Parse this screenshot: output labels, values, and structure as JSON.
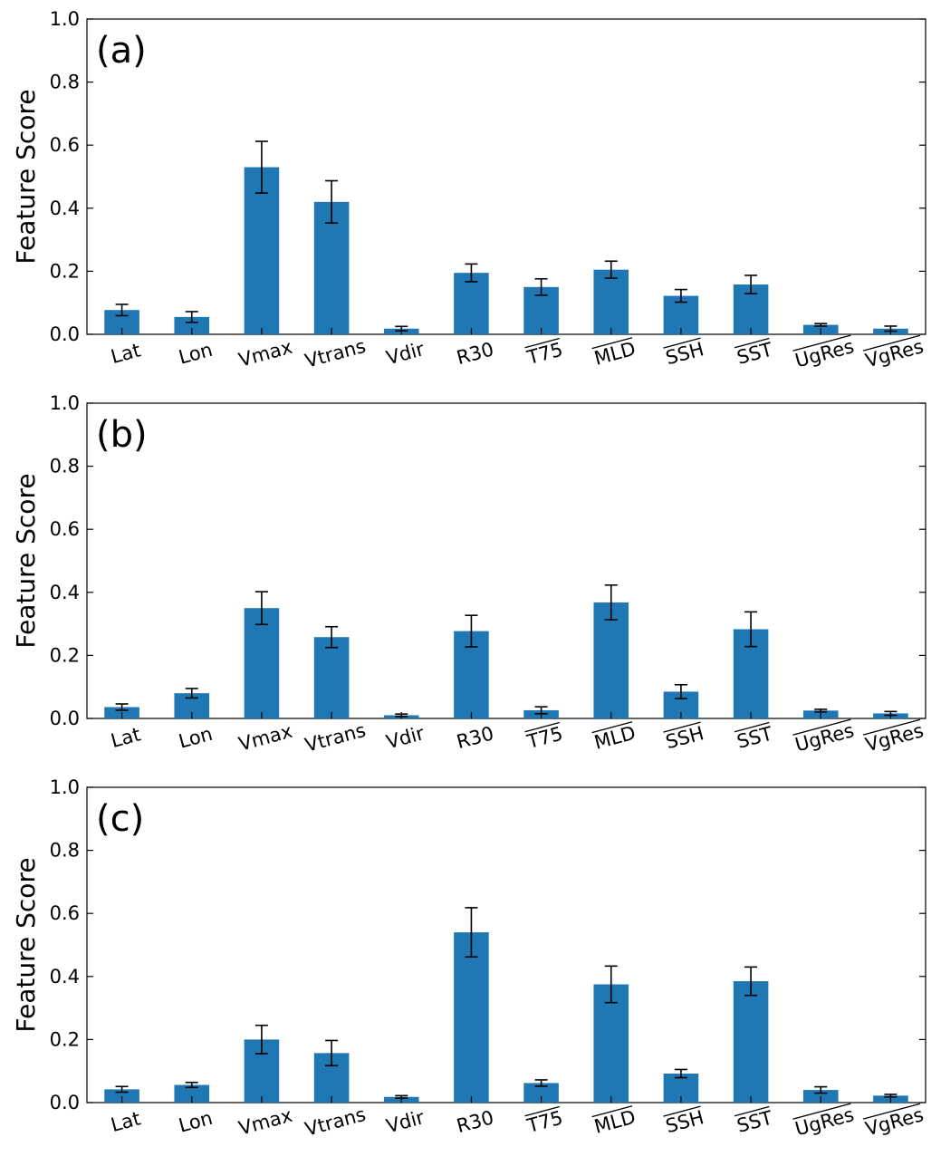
{
  "chart_data": [
    {
      "type": "bar",
      "panel_label": "(a)",
      "ylabel": "Feature Score",
      "ylim": [
        0,
        1.0
      ],
      "yticks": [
        "0.0",
        "0.2",
        "0.4",
        "0.6",
        "0.8",
        "1.0"
      ],
      "categories": [
        "Lat",
        "Lon",
        "Vmax",
        "Vtrans",
        "Vdir",
        "R30",
        "T75",
        "MLD",
        "SSH",
        "SST",
        "UgRes",
        "VgRes"
      ],
      "overlined": [
        false,
        false,
        false,
        false,
        false,
        false,
        true,
        true,
        true,
        true,
        true,
        true
      ],
      "values": [
        0.077,
        0.055,
        0.53,
        0.42,
        0.018,
        0.195,
        0.15,
        0.205,
        0.122,
        0.158,
        0.03,
        0.018
      ],
      "errors": [
        0.018,
        0.017,
        0.082,
        0.067,
        0.007,
        0.028,
        0.026,
        0.027,
        0.02,
        0.029,
        0.004,
        0.008
      ],
      "bar_color": "#1f77b4"
    },
    {
      "type": "bar",
      "panel_label": "(b)",
      "ylabel": "Feature Score",
      "ylim": [
        0,
        1.0
      ],
      "yticks": [
        "0.0",
        "0.2",
        "0.4",
        "0.6",
        "0.8",
        "1.0"
      ],
      "categories": [
        "Lat",
        "Lon",
        "Vmax",
        "Vtrans",
        "Vdir",
        "R30",
        "T75",
        "MLD",
        "SSH",
        "SST",
        "UgRes",
        "VgRes"
      ],
      "overlined": [
        false,
        false,
        false,
        false,
        false,
        false,
        true,
        true,
        true,
        true,
        true,
        true
      ],
      "values": [
        0.036,
        0.08,
        0.35,
        0.258,
        0.01,
        0.277,
        0.026,
        0.368,
        0.085,
        0.283,
        0.025,
        0.016
      ],
      "errors": [
        0.01,
        0.015,
        0.052,
        0.033,
        0.004,
        0.05,
        0.011,
        0.055,
        0.022,
        0.055,
        0.004,
        0.006
      ],
      "bar_color": "#1f77b4"
    },
    {
      "type": "bar",
      "panel_label": "(c)",
      "ylabel": "Feature Score",
      "ylim": [
        0,
        1.0
      ],
      "yticks": [
        "0.0",
        "0.2",
        "0.4",
        "0.6",
        "0.8",
        "1.0"
      ],
      "categories": [
        "Lat",
        "Lon",
        "Vmax",
        "Vtrans",
        "Vdir",
        "R30",
        "T75",
        "MLD",
        "SSH",
        "SST",
        "UgRes",
        "VgRes"
      ],
      "overlined": [
        false,
        false,
        false,
        false,
        false,
        false,
        true,
        true,
        true,
        true,
        true,
        true
      ],
      "values": [
        0.042,
        0.056,
        0.2,
        0.157,
        0.018,
        0.54,
        0.062,
        0.375,
        0.092,
        0.385,
        0.04,
        0.022
      ],
      "errors": [
        0.009,
        0.008,
        0.045,
        0.04,
        0.004,
        0.078,
        0.01,
        0.058,
        0.013,
        0.045,
        0.01,
        0.004
      ],
      "bar_color": "#1f77b4"
    }
  ]
}
